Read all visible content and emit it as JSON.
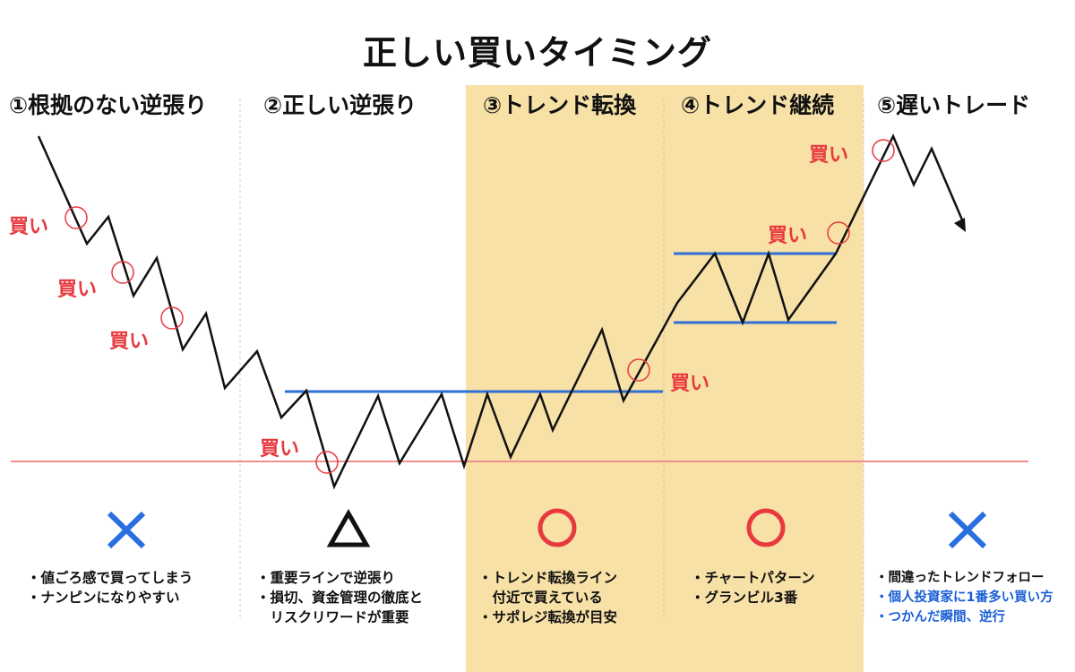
{
  "title": "正しい買いタイミング",
  "sections": [
    {
      "heading": "①根拠のない逆張り",
      "symbol": "cross",
      "bullets": [
        {
          "text": "・値ごろ感で買ってしまう",
          "color": "#111111"
        },
        {
          "text": "・ナンピンになりやすい",
          "color": "#111111"
        }
      ]
    },
    {
      "heading": "②正しい逆張り",
      "symbol": "triangle",
      "bullets": [
        {
          "text": "・重要ラインで逆張り",
          "color": "#111111"
        },
        {
          "text": "・損切、資金管理の徹底と",
          "color": "#111111"
        },
        {
          "text": "　リスクリワードが重要",
          "color": "#111111"
        }
      ]
    },
    {
      "heading": "③トレンド転換",
      "symbol": "circle",
      "bullets": [
        {
          "text": "・トレンド転換ライン",
          "color": "#111111"
        },
        {
          "text": "　付近で買えている",
          "color": "#111111"
        },
        {
          "text": "・サポレジ転換が目安",
          "color": "#111111"
        }
      ]
    },
    {
      "heading": "④トレンド継続",
      "symbol": "circle",
      "bullets": [
        {
          "text": "・チャートパターン",
          "color": "#111111"
        },
        {
          "text": "・グランビル3番",
          "color": "#111111"
        }
      ]
    },
    {
      "heading": "⑤遅いトレード",
      "symbol": "cross",
      "bullets": [
        {
          "text": "・間違ったトレンドフォロー",
          "color": "#111111"
        },
        {
          "text": "・個人投資家に1番多い買い方",
          "color": "#1a5fd6"
        },
        {
          "text": "・つかんだ瞬間、逆行",
          "color": "#1a5fd6"
        }
      ]
    }
  ],
  "buy_label": "買い",
  "colors": {
    "highlight": "#f7e1a6",
    "buy": "#e8393f",
    "line_blue": "#2f6fd6",
    "line_red": "#f08f8f",
    "cross": "#2a6fe0",
    "circle": "#e8393f",
    "triangle": "#111111",
    "divider": "#cccccc"
  }
}
